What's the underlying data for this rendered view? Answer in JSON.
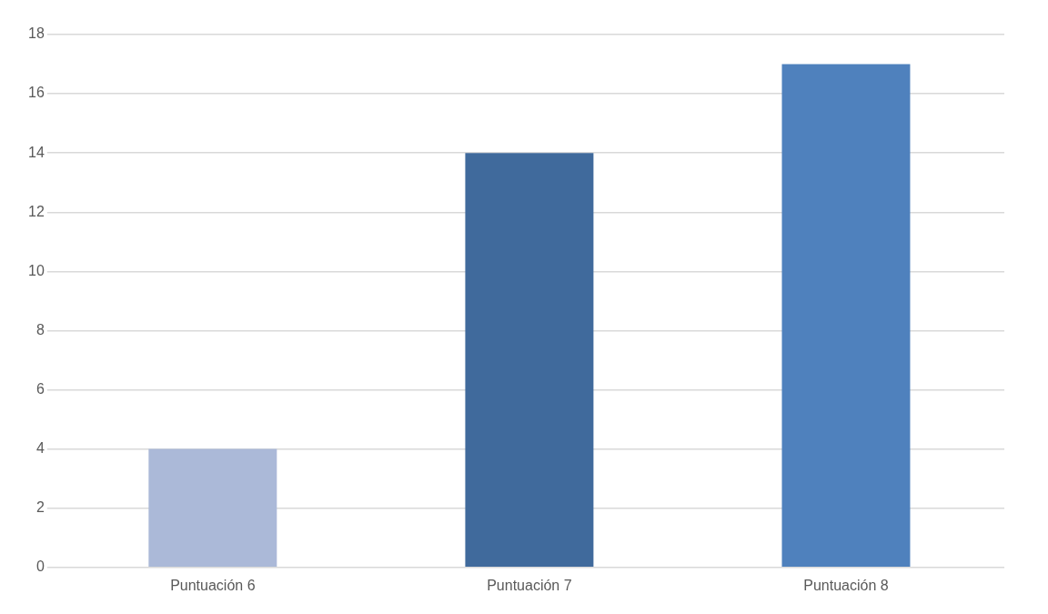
{
  "chart_data": {
    "type": "bar",
    "categories": [
      "Puntuación 6",
      "Puntuación 7",
      "Puntuación 8"
    ],
    "values": [
      4,
      14,
      17
    ],
    "colors": [
      "#abb9d8",
      "#406a9c",
      "#4f81bd"
    ],
    "ylim": [
      0,
      18
    ],
    "yticks": [
      0,
      2,
      4,
      6,
      8,
      10,
      12,
      14,
      16,
      18
    ],
    "grid": "y",
    "legend": false
  }
}
